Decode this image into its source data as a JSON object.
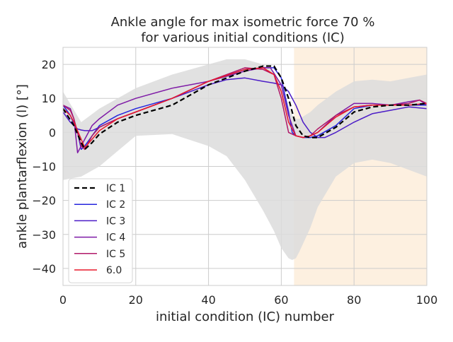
{
  "chart_data": {
    "type": "line",
    "title_line1": "Ankle angle for max isometric force 70 %",
    "title_line2": "for various initial conditions (IC)",
    "xlabel": "initial condition (IC) number",
    "ylabel": "ankle plantarflexion (l) [°]",
    "xlim": [
      0,
      100
    ],
    "ylim": [
      -45,
      25
    ],
    "xticks": [
      0,
      20,
      40,
      60,
      80,
      100
    ],
    "yticks": [
      -40,
      -30,
      -20,
      -10,
      0,
      10,
      20
    ],
    "grid": true,
    "legend_position": "lower-left",
    "shaded_region": {
      "x_start": 63.5,
      "x_end": 100,
      "color": "#fdf0e0"
    },
    "band": {
      "color": "#dcdcdc",
      "x": [
        0,
        5,
        10,
        20,
        30,
        40,
        45,
        50,
        55,
        58,
        60,
        62,
        63,
        64,
        65,
        68,
        70,
        75,
        80,
        85,
        90,
        95,
        100
      ],
      "upper": [
        12,
        3,
        7,
        13,
        17,
        20,
        21.5,
        21.5,
        20,
        18,
        14,
        8,
        5,
        4,
        4,
        6,
        8,
        12,
        15,
        15.5,
        15,
        16,
        17
      ],
      "lower": [
        -14,
        -13,
        -10,
        -1,
        -0.5,
        -4,
        -7,
        -14,
        -23,
        -29,
        -34,
        -37,
        -37.5,
        -37,
        -35,
        -28,
        -22,
        -13,
        -9,
        -8,
        -9,
        -11,
        -13
      ]
    },
    "series": [
      {
        "name": "IC 1",
        "color": "#000000",
        "dash": true,
        "width": 2.2,
        "x": [
          0,
          3,
          5,
          6,
          8,
          10,
          15,
          20,
          30,
          40,
          50,
          55,
          58,
          60,
          62,
          64,
          66,
          68,
          70,
          75,
          80,
          85,
          90,
          95,
          100
        ],
        "y": [
          7,
          2,
          -3,
          -5,
          -3,
          -0.5,
          3,
          5,
          8,
          14,
          18,
          19.5,
          19.5,
          16,
          10,
          2,
          -1,
          -1.5,
          -1.5,
          1.5,
          6,
          7.5,
          8,
          8,
          8.5
        ]
      },
      {
        "name": "IC 2",
        "color": "#2525dd",
        "dash": false,
        "width": 1.5,
        "x": [
          0,
          2,
          4,
          5,
          6,
          8,
          10,
          15,
          20,
          30,
          40,
          50,
          55,
          58,
          60,
          62,
          63,
          64,
          66,
          68,
          70,
          75,
          80,
          85,
          90,
          95,
          100
        ],
        "y": [
          8,
          5,
          0,
          -5,
          -4,
          -1,
          2,
          5,
          7,
          10,
          15,
          18.5,
          19,
          19,
          16,
          6,
          0,
          -1,
          -1.5,
          -1.5,
          -1,
          2,
          7,
          8,
          8,
          8,
          8
        ]
      },
      {
        "name": "IC 3",
        "color": "#4b1cc7",
        "dash": false,
        "width": 1.5,
        "x": [
          0,
          2,
          4,
          5,
          6,
          8,
          10,
          15,
          20,
          30,
          40,
          45,
          50,
          55,
          58,
          60,
          62,
          64,
          66,
          68,
          70,
          72,
          75,
          80,
          85,
          90,
          95,
          100
        ],
        "y": [
          6,
          3,
          1,
          0.7,
          0.5,
          0.5,
          1.5,
          4,
          6,
          10,
          14,
          15.5,
          16,
          15,
          14.5,
          14,
          12,
          8,
          3,
          0,
          -1.5,
          -1.5,
          0,
          3,
          5.5,
          6.5,
          7.5,
          7
        ]
      },
      {
        "name": "IC 4",
        "color": "#7e1aa6",
        "dash": false,
        "width": 1.5,
        "x": [
          0,
          2,
          3,
          4,
          6,
          8,
          10,
          15,
          20,
          30,
          40,
          50,
          55,
          57,
          60,
          62,
          64,
          66,
          68,
          70,
          75,
          80,
          85,
          90,
          95,
          98,
          100
        ],
        "y": [
          8,
          7,
          4,
          -6,
          -2,
          2,
          4,
          8,
          10,
          13,
          15,
          18,
          19,
          19,
          14,
          5,
          -1,
          -1.5,
          -1,
          0,
          5,
          8.5,
          8.5,
          8,
          9,
          9.5,
          8
        ]
      },
      {
        "name": "IC 5",
        "color": "#b01868",
        "dash": false,
        "width": 1.5,
        "x": [
          0,
          2,
          3,
          5,
          6,
          8,
          10,
          15,
          20,
          30,
          40,
          50,
          55,
          58,
          60,
          62,
          64,
          66,
          68,
          70,
          75,
          80,
          85,
          90,
          95,
          98,
          100
        ],
        "y": [
          8,
          6.5,
          4,
          -4,
          -5,
          -1,
          1.5,
          4,
          6,
          10,
          15,
          19,
          18.5,
          17,
          10,
          0,
          -1,
          -1.5,
          -1,
          1,
          5,
          7.5,
          8,
          8,
          8.5,
          9.5,
          8.5
        ]
      },
      {
        "name": "6.0",
        "color": "#e8182a",
        "dash": false,
        "width": 1.5,
        "x": [
          0,
          2,
          3,
          5,
          6,
          8,
          10,
          15,
          20,
          30,
          40,
          50,
          55,
          58,
          60,
          62,
          64,
          66,
          68,
          70,
          75,
          80,
          85,
          90,
          95,
          100
        ],
        "y": [
          7,
          5,
          3,
          -2,
          -4.5,
          -2,
          0.5,
          4,
          6,
          10,
          15,
          18.5,
          19,
          17,
          12,
          3,
          -1,
          -1.5,
          -1,
          0,
          4.5,
          7.5,
          8,
          8,
          8,
          8.5
        ]
      }
    ]
  }
}
